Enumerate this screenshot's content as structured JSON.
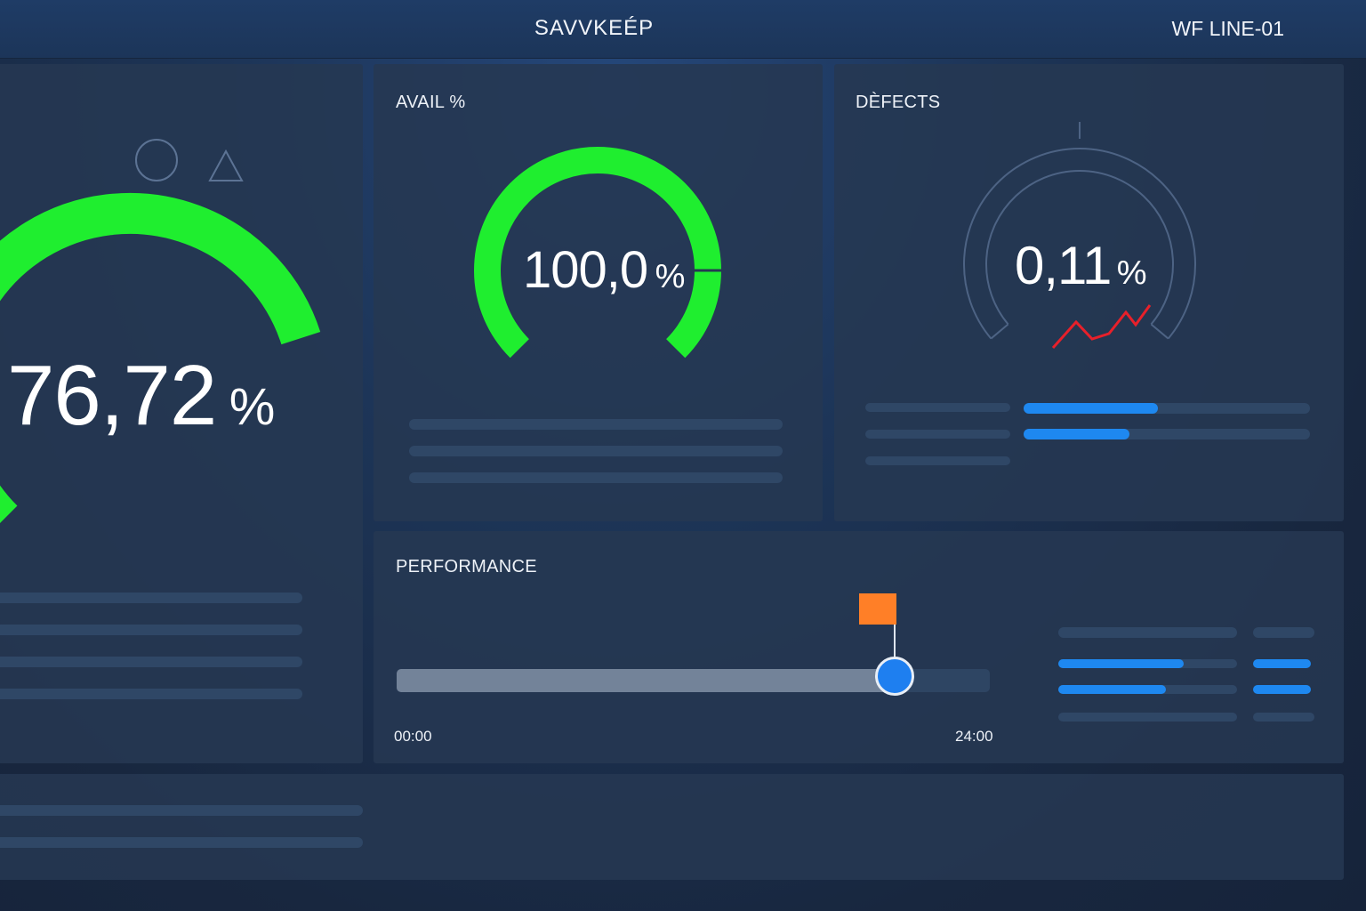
{
  "header": {
    "app_title": "SAVVKEÉP",
    "line_id": "WF LINE-01"
  },
  "oee_gauge": {
    "value": "76,72",
    "unit": "%",
    "value_fraction": 0.7672,
    "color": "#1fee2f",
    "icons": [
      "circle-icon",
      "triangle-icon"
    ]
  },
  "availability": {
    "title": "AVAIL %",
    "value": "100,0",
    "unit": "%",
    "value_fraction": 1.0,
    "color": "#1fee2f"
  },
  "defects": {
    "title": "DÈFECTS",
    "value": "0,11",
    "unit": "%",
    "trend_color": "#e8202a",
    "bar_fill_fractions": [
      0.47,
      0.37
    ]
  },
  "performance": {
    "title": "PERFORMANCE",
    "start_label": "00:00",
    "end_label": "24:00",
    "progress_fraction": 0.84,
    "marker_color": "#ff7f27",
    "knob_color": "#1e7ff0",
    "side_bar_fill_fractions": [
      0.7,
      0.6
    ]
  },
  "colors": {
    "background": "#18273f",
    "panel": "#263852",
    "accent_blue": "#1e88f0",
    "gauge_green": "#1fee2f",
    "placeholder": "#2f4766"
  }
}
